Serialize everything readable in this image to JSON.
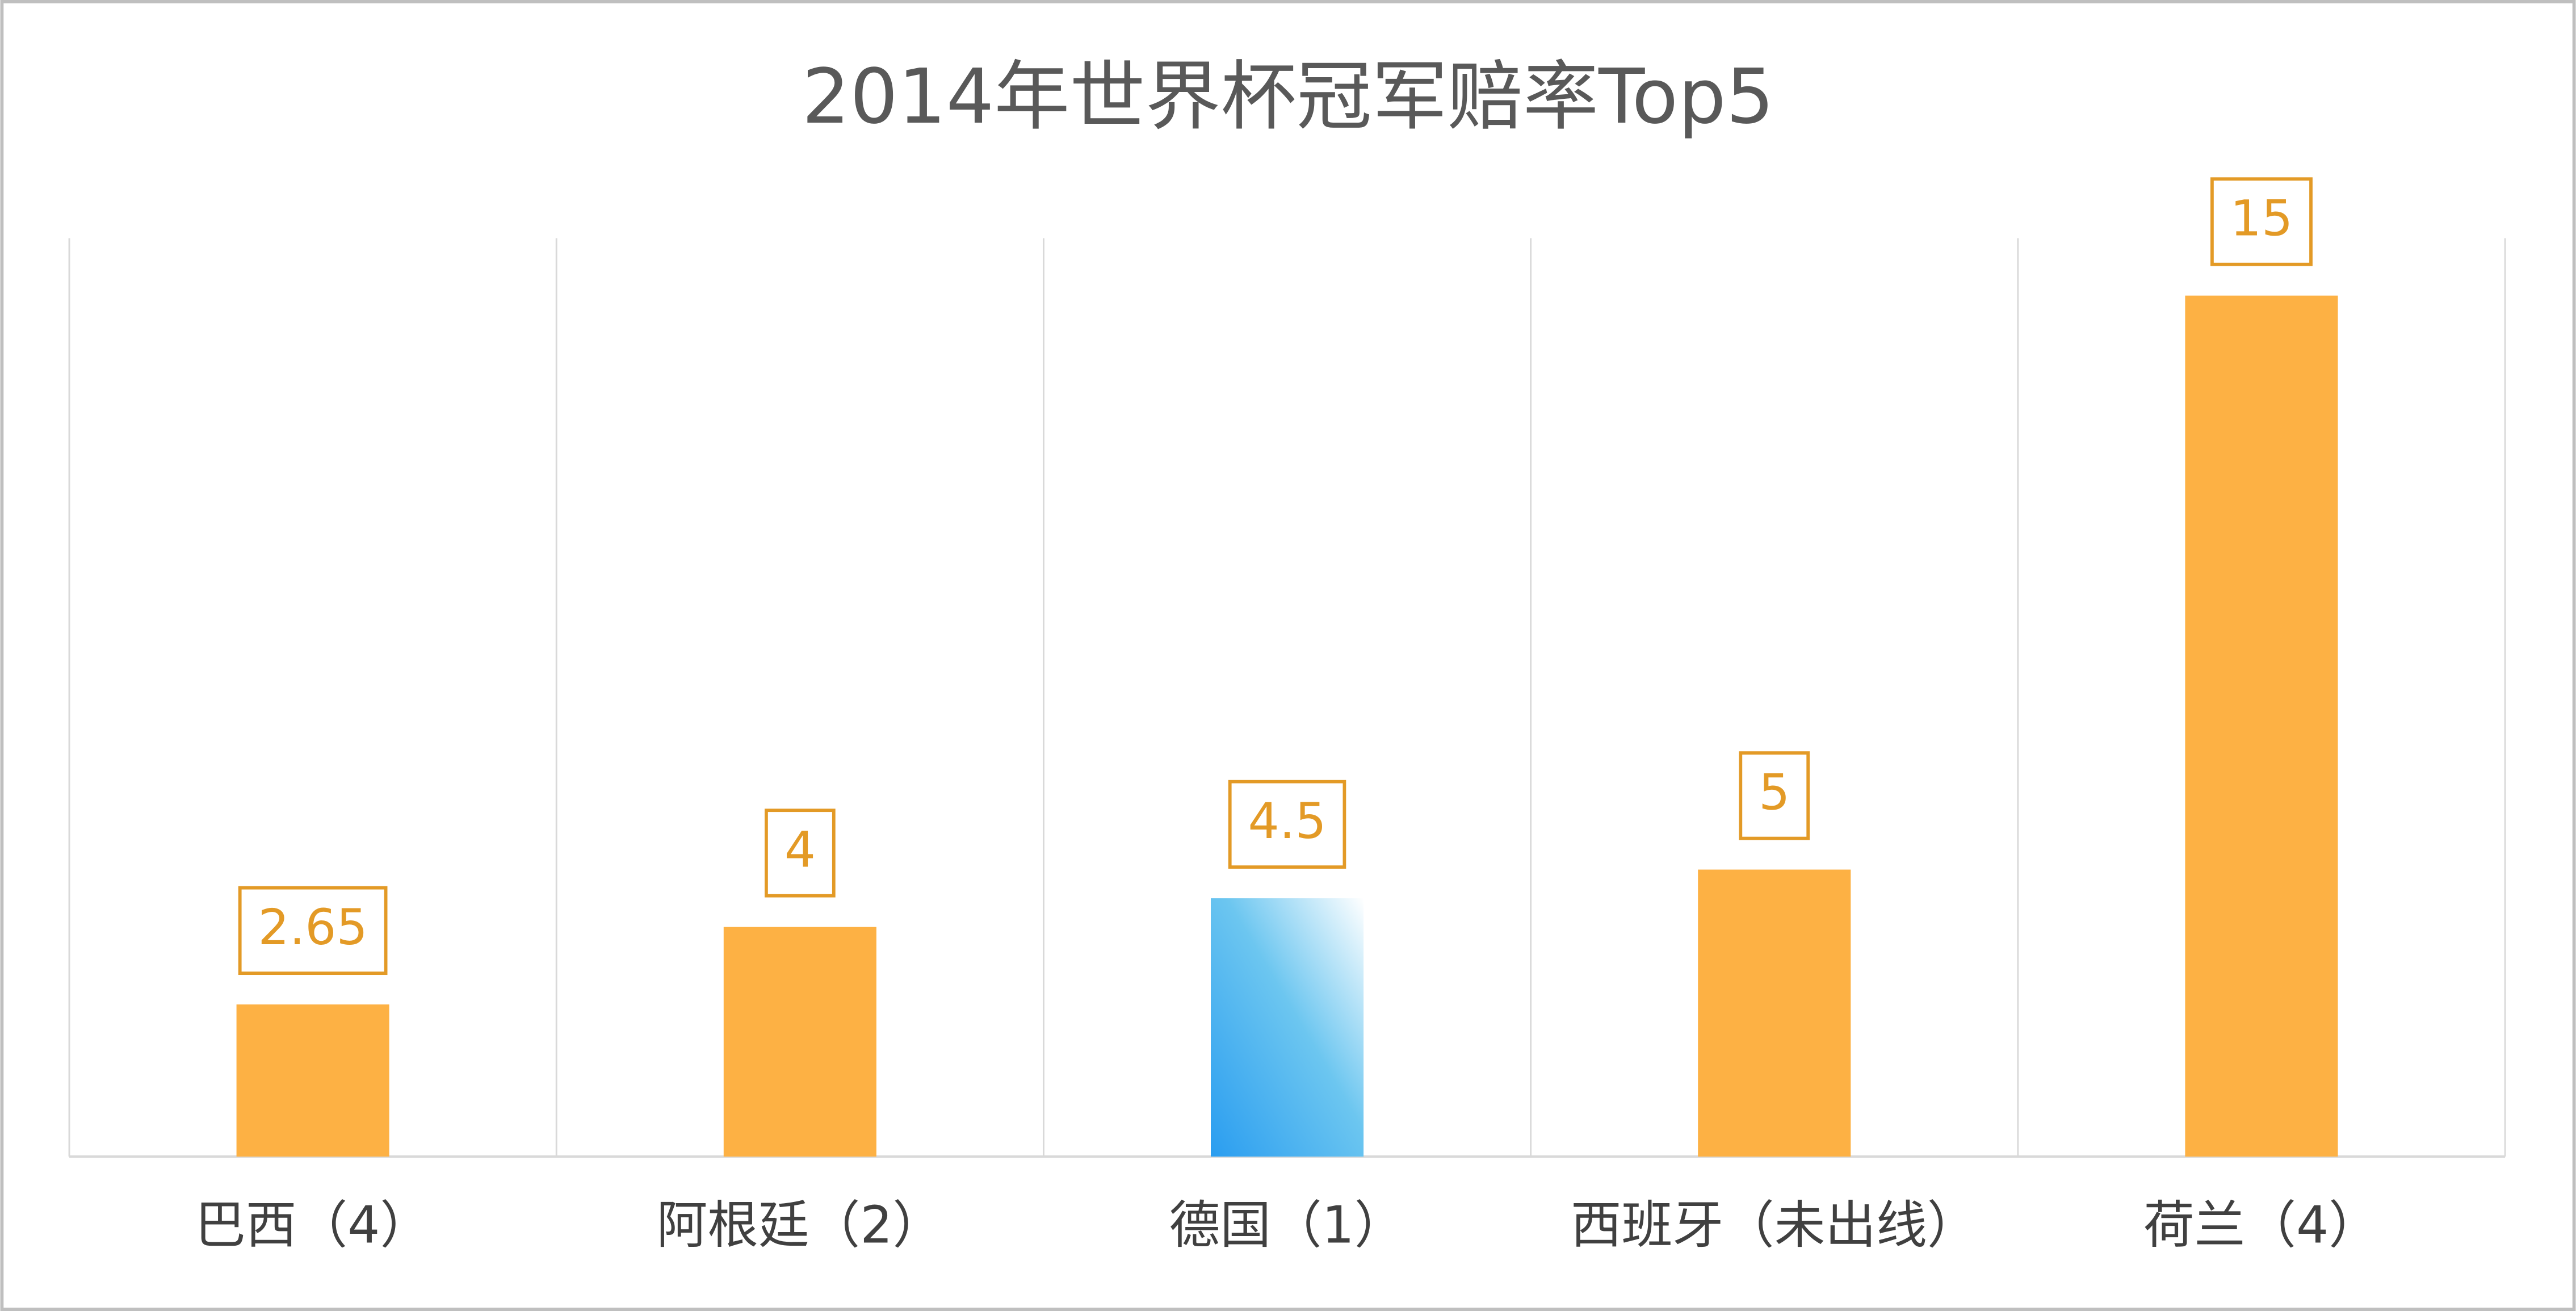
{
  "chart_data": {
    "type": "bar",
    "title": "2014年世界杯冠军赔率Top5",
    "categories": [
      "巴西（4）",
      "阿根廷（2）",
      "德国（1）",
      "西班牙（未出线）",
      "荷兰（4）"
    ],
    "values": [
      2.65,
      4,
      4.5,
      5,
      15
    ],
    "colors": [
      "#fdb144",
      "#fdb144",
      "#2a9df0",
      "#fdb144",
      "#fdb144"
    ],
    "label_color": "#e39a26",
    "ylim": [
      0,
      16
    ],
    "grid": true
  }
}
